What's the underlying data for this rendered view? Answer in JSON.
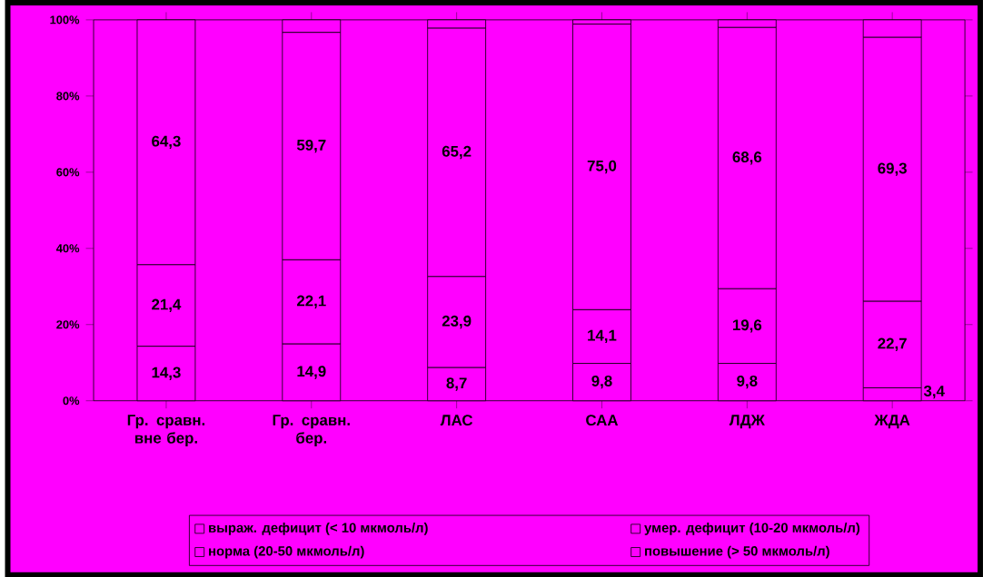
{
  "chart_data": {
    "type": "bar",
    "stacked": true,
    "categories": [
      "Гр. сравн. вне бер.",
      "Гр. сравн. бер.",
      "ЛАС",
      "САА",
      "ЛДЖ",
      "ЖДА"
    ],
    "ylim": [
      0,
      100
    ],
    "yticks": [
      {
        "value": 0,
        "label": "0%"
      },
      {
        "value": 20,
        "label": "20%"
      },
      {
        "value": 40,
        "label": "40%"
      },
      {
        "value": 60,
        "label": "60%"
      },
      {
        "value": 80,
        "label": "80%"
      },
      {
        "value": 100,
        "label": "100%"
      }
    ],
    "legend": "bottom",
    "grid": false,
    "series": [
      {
        "name": "выраж. дефицит (< 10 мкмоль/л)",
        "color": "#ff00ff",
        "values": [
          14.3,
          14.9,
          8.7,
          9.8,
          9.8,
          3.4
        ],
        "value_labels": [
          "14,3",
          "14,9",
          "8,7",
          "9,8",
          "9,8",
          "3,4"
        ]
      },
      {
        "name": "умер. дефицит (10-20 мкмоль/л)",
        "color": "#ff00ff",
        "values": [
          21.4,
          22.1,
          23.9,
          14.1,
          19.6,
          22.7
        ],
        "value_labels": [
          "21,4",
          "22,1",
          "23,9",
          "14,1",
          "19,6",
          "22,7"
        ]
      },
      {
        "name": "норма (20-50 мкмоль/л)",
        "color": "#ff00ff",
        "values": [
          64.3,
          59.7,
          65.2,
          75.0,
          68.6,
          69.3
        ],
        "value_labels": [
          "64,3",
          "59,7",
          "65,2",
          "75,0",
          "68,6",
          "69,3"
        ]
      },
      {
        "name": "повышение (> 50 мкмоль/л)",
        "color": "#ff00ff",
        "values": [
          0,
          3.3,
          2.2,
          1.1,
          2.0,
          4.6
        ]
      }
    ]
  }
}
